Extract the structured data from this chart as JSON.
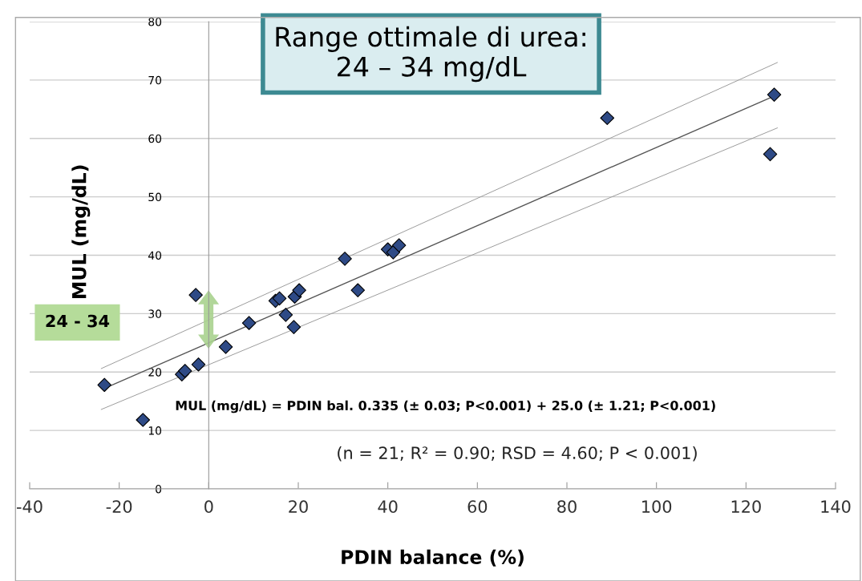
{
  "chart_data": {
    "type": "scatter",
    "title": "Range ottimale di urea:\n24 – 34 mg/dL",
    "xlabel": "PDIN balance (%)",
    "ylabel": "MUL (mg/dL)",
    "xlim": [
      -40,
      140
    ],
    "xticks": [
      -40,
      -20,
      0,
      20,
      40,
      60,
      80,
      100,
      120,
      140
    ],
    "ylim": [
      0,
      80
    ],
    "yticks": [
      0,
      10,
      20,
      30,
      40,
      50,
      60,
      70,
      80
    ],
    "grid": "y",
    "legend": false,
    "annotations": [
      "24 - 34",
      "MUL (mg/dL) = PDIN bal. 0.335 (± 0.03; P<0.001) + 25.0 (± 1.21; P<0.001)",
      "(n = 21; R² = 0.90; RSD = 4.60; P < 0.001)"
    ],
    "series": [
      {
        "marker": "diamond",
        "color": "#2e4a86",
        "x": [
          -23.3,
          -14.7,
          -6.0,
          -5.3,
          -2.3,
          -2.9,
          3.8,
          9.0,
          14.9,
          15.8,
          17.2,
          19.0,
          19.2,
          20.2,
          30.4,
          33.3,
          40.0,
          41.2,
          42.5,
          89.0,
          126.3,
          125.4
        ],
        "values": [
          17.8,
          11.8,
          19.6,
          20.2,
          21.3,
          33.2,
          24.3,
          28.4,
          32.2,
          32.6,
          29.8,
          27.7,
          32.9,
          34.0,
          39.4,
          34.0,
          41.0,
          40.5,
          41.7,
          63.5,
          67.5,
          57.3
        ]
      },
      {
        "type": "line",
        "color": "#555555",
        "x": [
          -23.3,
          127
        ],
        "values": [
          17.2,
          67.5
        ]
      },
      {
        "type": "line",
        "color": "#999999",
        "x": [
          -24,
          127
        ],
        "values": [
          20.6,
          73.0
        ]
      },
      {
        "type": "line",
        "color": "#999999",
        "x": [
          -24,
          127
        ],
        "values": [
          13.6,
          61.8
        ]
      }
    ]
  }
}
